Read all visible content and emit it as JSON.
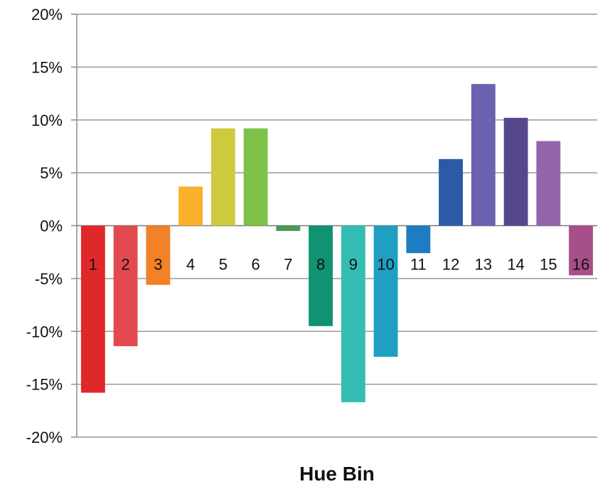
{
  "chart_data": {
    "type": "bar",
    "title": "",
    "xlabel": "Hue Bin",
    "ylabel": "",
    "categories": [
      "1",
      "2",
      "3",
      "4",
      "5",
      "6",
      "7",
      "8",
      "9",
      "10",
      "11",
      "12",
      "13",
      "14",
      "15",
      "16"
    ],
    "values": [
      -15.8,
      -11.4,
      -5.6,
      3.7,
      9.2,
      9.2,
      -0.5,
      -9.5,
      -16.7,
      -12.4,
      -2.6,
      6.3,
      13.4,
      10.2,
      8.0,
      -4.7
    ],
    "colors": [
      "#e0282b",
      "#e24a4f",
      "#f28127",
      "#f9b02a",
      "#cdcb3d",
      "#7ec24a",
      "#4a9a58",
      "#0f9371",
      "#33bdb3",
      "#1f9fc1",
      "#1f7cc3",
      "#2b5aa6",
      "#6a61b0",
      "#56478c",
      "#9365a8",
      "#a64f88"
    ],
    "ylim": [
      -20,
      20
    ],
    "yticks": [
      20,
      15,
      10,
      5,
      0,
      -5,
      -10,
      -15,
      -20
    ],
    "ytick_labels": [
      "20%",
      "15%",
      "10%",
      "5%",
      "0%",
      "-5%",
      "-10%",
      "-15%",
      "-20%"
    ],
    "grid": true,
    "legend": "none"
  }
}
